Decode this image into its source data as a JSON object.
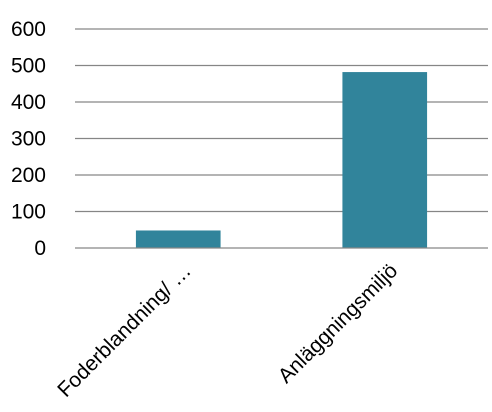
{
  "chart_data": {
    "type": "bar",
    "categories": [
      "Foderblandning/ …",
      "Anläggningsmiljö"
    ],
    "values": [
      48,
      482
    ],
    "ylim": [
      0,
      600
    ],
    "yticks": [
      0,
      100,
      200,
      300,
      400,
      500,
      600
    ],
    "ytick_labels": [
      "0",
      "100",
      "200",
      "300",
      "400",
      "500",
      "600"
    ],
    "grid": true,
    "legend": "none",
    "bar_color": "#31849b",
    "grid_color": "#868686"
  }
}
